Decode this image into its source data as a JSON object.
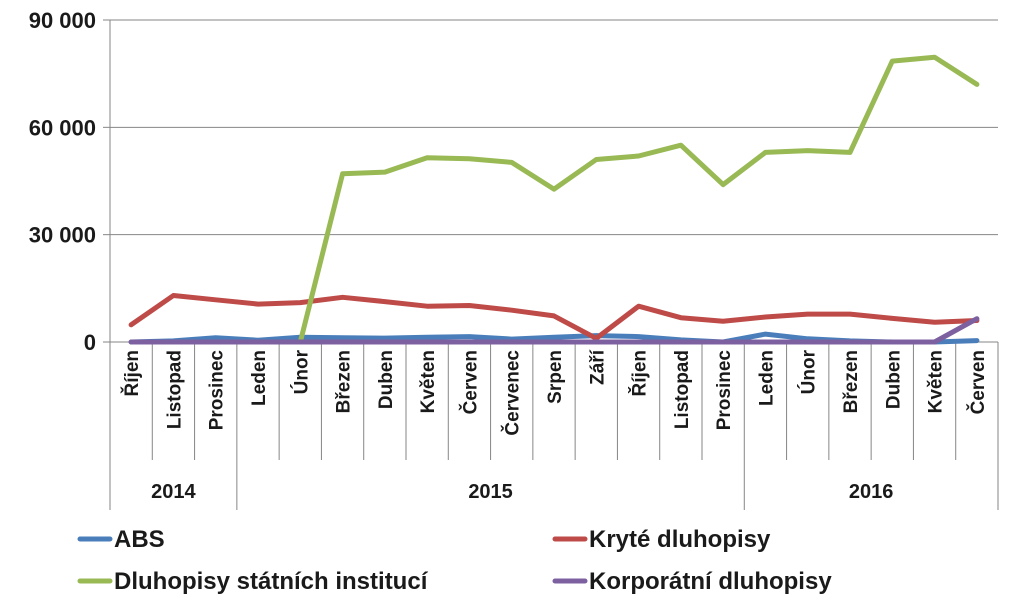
{
  "chart_data": {
    "type": "line",
    "yticks": [
      "0",
      "30 000",
      "60 000",
      "90 000"
    ],
    "ylim": [
      0,
      90000
    ],
    "ytick_values": [
      0,
      30000,
      60000,
      90000
    ],
    "grid": true,
    "categories": [
      "Říjen",
      "Listopad",
      "Prosinec",
      "Leden",
      "Únor",
      "Březen",
      "Duben",
      "Květen",
      "Červen",
      "Červenec",
      "Srpen",
      "Září",
      "Říjen",
      "Listopad",
      "Prosinec",
      "Leden",
      "Únor",
      "Březen",
      "Duben",
      "Květen",
      "Červen"
    ],
    "years": [
      {
        "label": "2014",
        "from": 0,
        "to": 2
      },
      {
        "label": "2015",
        "from": 3,
        "to": 14
      },
      {
        "label": "2016",
        "from": 15,
        "to": 20
      }
    ],
    "legend_position": "bottom",
    "series": [
      {
        "name": "ABS",
        "color": "#4a7ebb",
        "values": [
          0,
          300,
          1200,
          500,
          1300,
          1200,
          1100,
          1300,
          1500,
          800,
          1300,
          1800,
          1500,
          600,
          0,
          2200,
          900,
          300,
          0,
          0,
          400
        ]
      },
      {
        "name": "Kryté dluhopisy",
        "color": "#be4b48",
        "values": [
          4800,
          13000,
          11800,
          10600,
          11000,
          12500,
          11300,
          10000,
          10200,
          8900,
          7300,
          1000,
          10000,
          6800,
          5800,
          7000,
          7800,
          7800,
          6600,
          5500,
          6000
        ]
      },
      {
        "name": "Dluhopisy státních institucí",
        "color": "#98b954",
        "values": [
          null,
          null,
          null,
          null,
          0,
          47000,
          47500,
          51500,
          51200,
          50200,
          42700,
          51000,
          52000,
          55000,
          44000,
          53000,
          53500,
          53000,
          78500,
          79600,
          72000
        ]
      },
      {
        "name": "Korporátní dluhopisy",
        "color": "#7d60a0",
        "values": [
          0,
          0,
          0,
          0,
          0,
          0,
          0,
          0,
          0,
          0,
          0,
          0,
          0,
          0,
          0,
          0,
          0,
          0,
          0,
          0,
          6500
        ]
      }
    ]
  }
}
